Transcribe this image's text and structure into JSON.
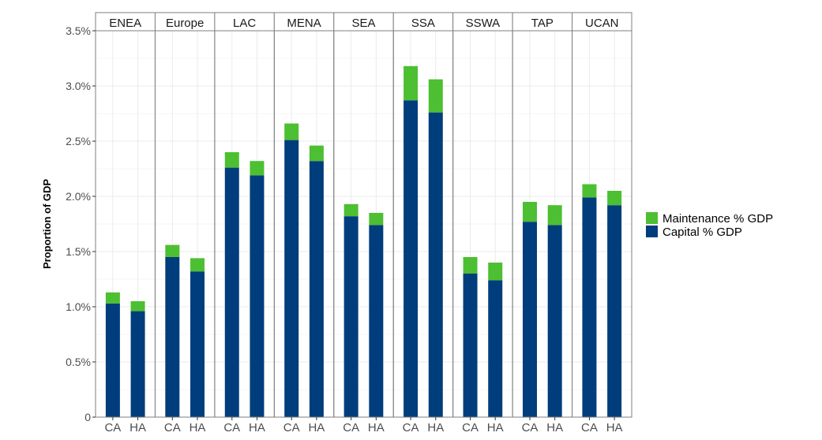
{
  "chart_data": {
    "type": "bar",
    "stacked": true,
    "faceted": true,
    "ylabel": "Proportion of GDP",
    "xlabel": "",
    "ylim": [
      0,
      3.5
    ],
    "yticks": [
      0,
      0.5,
      1.0,
      1.5,
      2.0,
      2.5,
      3.0,
      3.5
    ],
    "ytick_labels": [
      "0",
      "0.5%",
      "1.0%",
      "1.5%",
      "2.0%",
      "2.5%",
      "3.0%",
      "3.5%"
    ],
    "grid": true,
    "legend_position": "right",
    "categories": [
      "CA",
      "HA"
    ],
    "panels": [
      {
        "name": "ENEA",
        "capital": [
          1.03,
          0.96
        ],
        "maintenance": [
          0.1,
          0.09
        ]
      },
      {
        "name": "Europe",
        "capital": [
          1.45,
          1.32
        ],
        "maintenance": [
          0.11,
          0.12
        ]
      },
      {
        "name": "LAC",
        "capital": [
          2.26,
          2.19
        ],
        "maintenance": [
          0.14,
          0.13
        ]
      },
      {
        "name": "MENA",
        "capital": [
          2.51,
          2.32
        ],
        "maintenance": [
          0.15,
          0.14
        ]
      },
      {
        "name": "SEA",
        "capital": [
          1.82,
          1.74
        ],
        "maintenance": [
          0.11,
          0.11
        ]
      },
      {
        "name": "SSA",
        "capital": [
          2.87,
          2.76
        ],
        "maintenance": [
          0.31,
          0.3
        ]
      },
      {
        "name": "SSWA",
        "capital": [
          1.3,
          1.24
        ],
        "maintenance": [
          0.15,
          0.16
        ]
      },
      {
        "name": "TAP",
        "capital": [
          1.77,
          1.74
        ],
        "maintenance": [
          0.18,
          0.18
        ]
      },
      {
        "name": "UCAN",
        "capital": [
          1.99,
          1.92
        ],
        "maintenance": [
          0.12,
          0.13
        ]
      }
    ],
    "series": [
      {
        "name": "Maintenance % GDP",
        "key": "maintenance",
        "color": "#4dbf32"
      },
      {
        "name": "Capital % GDP",
        "key": "capital",
        "color": "#003d7c"
      }
    ]
  }
}
